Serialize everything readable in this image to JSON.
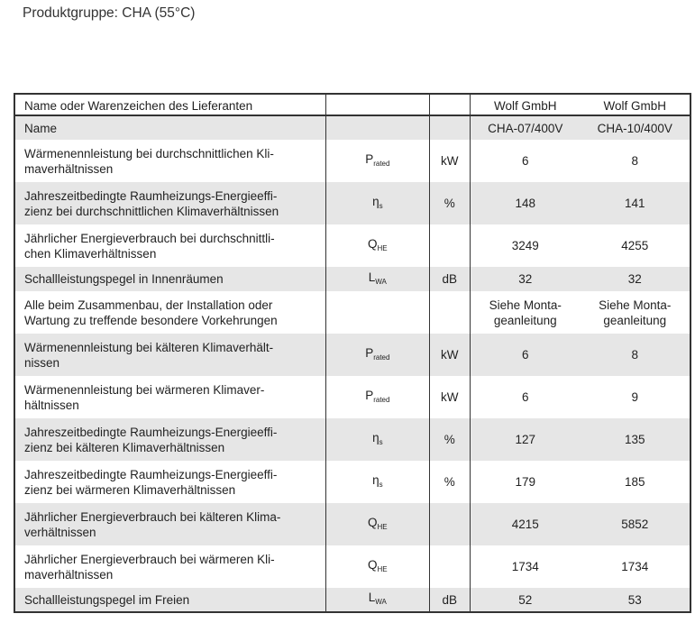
{
  "title": "Produktgruppe:  CHA (55°C)",
  "header": {
    "label": "Name oder Warenzeichen des Lieferanten",
    "col1": "Wolf GmbH",
    "col2": "Wolf GmbH"
  },
  "rows": [
    {
      "label": "Name",
      "sym": "",
      "sub": "",
      "unit": "",
      "v1": "CHA-07/400V",
      "v2": "CHA-10/400V"
    },
    {
      "label": "Wärmenennleistung bei durchschnittlichen Kli-maverhältnissen",
      "sym": "P",
      "sub": "rated",
      "unit": "kW",
      "v1": "6",
      "v2": "8"
    },
    {
      "label": "Jahreszeitbedingte Raumheizungs-Energieeffi-zienz bei durchschnittlichen Klimaverhältnissen",
      "sym": "η",
      "sub": "s",
      "unit": "%",
      "v1": "148",
      "v2": "141"
    },
    {
      "label": "Jährlicher Energieverbrauch bei durchschnittli-chen Klimaverhältnissen",
      "sym": "Q",
      "sub": "HE",
      "unit": "",
      "v1": "3249",
      "v2": "4255"
    },
    {
      "label": "Schallleistungspegel in Innenräumen",
      "sym": "L",
      "sub": "WA",
      "unit": "dB",
      "v1": "32",
      "v2": "32"
    },
    {
      "label": "Alle beim Zusammenbau, der Installation oder Wartung zu treffende besondere Vorkehrungen",
      "sym": "",
      "sub": "",
      "unit": "",
      "v1": "Siehe Monta-geanleitung",
      "v2": "Siehe Monta-geanleitung"
    },
    {
      "label": "Wärmenennleistung bei kälteren Klimaverhält-nissen",
      "sym": "P",
      "sub": "rated",
      "unit": "kW",
      "v1": "6",
      "v2": "8"
    },
    {
      "label": "Wärmenennleistung bei wärmeren Klimaver-hältnissen",
      "sym": "P",
      "sub": "rated",
      "unit": "kW",
      "v1": "6",
      "v2": "9"
    },
    {
      "label": "Jahreszeitbedingte Raumheizungs-Energieeffi-zienz bei kälteren Klimaverhältnissen",
      "sym": "η",
      "sub": "s",
      "unit": "%",
      "v1": "127",
      "v2": "135"
    },
    {
      "label": "Jahreszeitbedingte Raumheizungs-Energieeffi-zienz bei wärmeren Klimaverhältnissen",
      "sym": "η",
      "sub": "s",
      "unit": "%",
      "v1": "179",
      "v2": "185"
    },
    {
      "label": "Jährlicher Energieverbrauch bei kälteren Klima-verhältnissen",
      "sym": "Q",
      "sub": "HE",
      "unit": "",
      "v1": "4215",
      "v2": "5852"
    },
    {
      "label": "Jährlicher Energieverbrauch bei wärmeren Kli-maverhältnissen",
      "sym": "Q",
      "sub": "HE",
      "unit": "",
      "v1": "1734",
      "v2": "1734"
    },
    {
      "label": "Schallleistungspegel im Freien",
      "sym": "L",
      "sub": "WA",
      "unit": "dB",
      "v1": "52",
      "v2": "53"
    }
  ]
}
